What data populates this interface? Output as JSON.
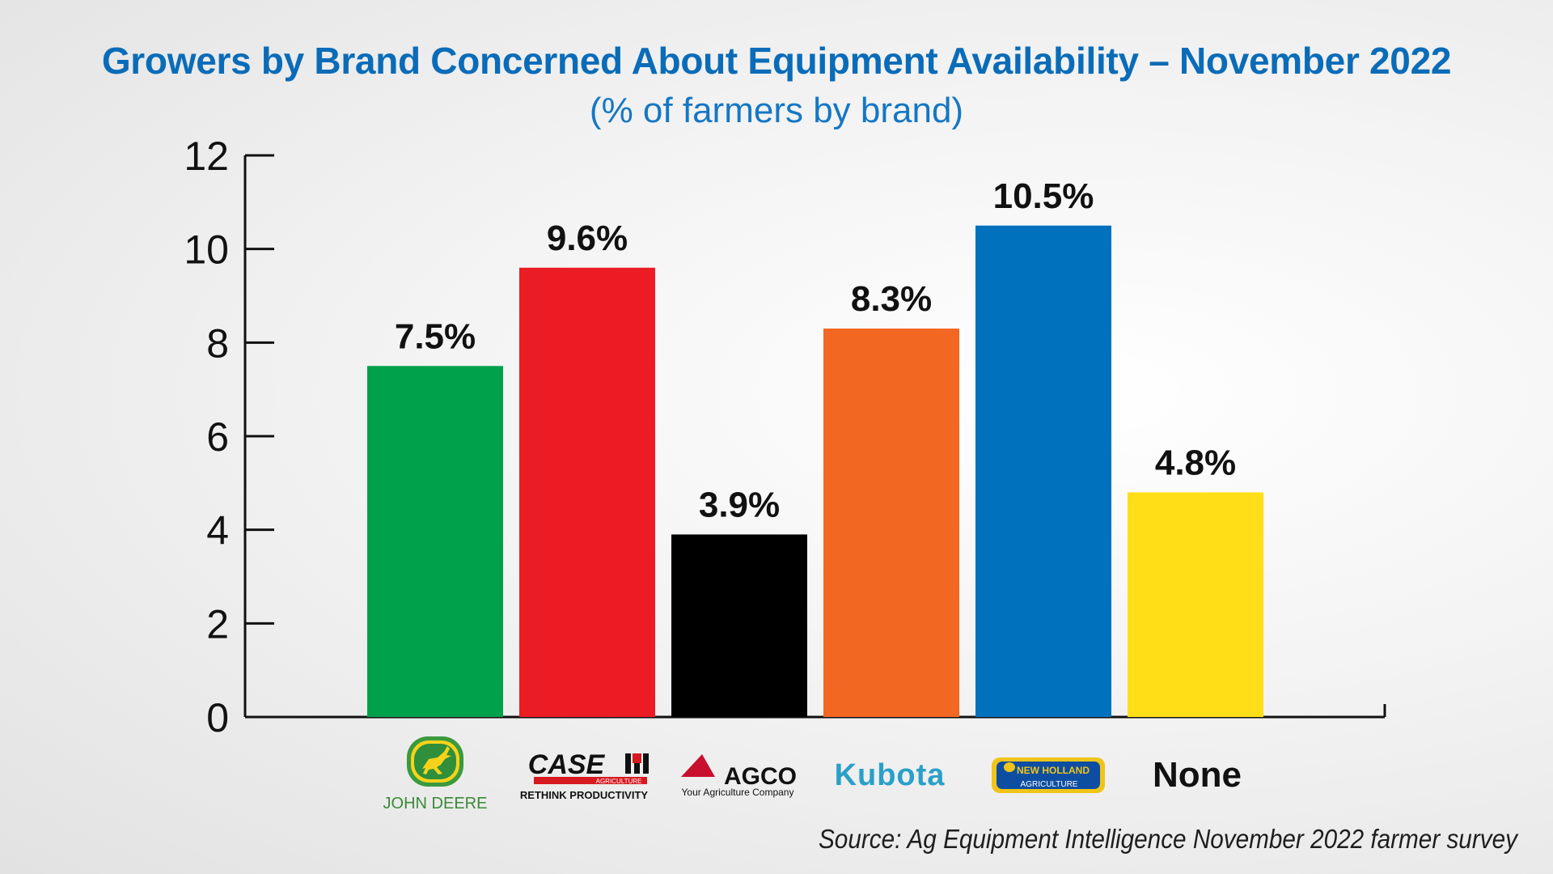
{
  "chart_data": {
    "type": "bar",
    "title": "Growers by Brand Concerned About Equipment Availability – November 2022",
    "subtitle": "(% of farmers by brand)",
    "categories": [
      "John Deere",
      "Case IH",
      "AGCO",
      "Kubota",
      "New Holland",
      "None"
    ],
    "values": [
      7.5,
      9.6,
      3.9,
      8.3,
      10.5,
      4.8
    ],
    "data_labels": [
      "7.5%",
      "9.6%",
      "3.9%",
      "8.3%",
      "10.5%",
      "4.8%"
    ],
    "colors": [
      "#00a14b",
      "#ec1c24",
      "#000000",
      "#f26722",
      "#0071bc",
      "#ffde17"
    ],
    "ylim": [
      0,
      12
    ],
    "yticks": [
      "0",
      "2",
      "4",
      "6",
      "8",
      "10",
      "12"
    ],
    "xlabel": "",
    "ylabel": "",
    "grid": false,
    "legend": "none"
  },
  "logos": {
    "john_deere": {
      "text": "JOHN DEERE",
      "icon": "deer-icon"
    },
    "case_ih": {
      "name": "CASE",
      "sub": "AGRICULTURE",
      "tagline": "RETHINK PRODUCTIVITY",
      "icon": "ih-icon"
    },
    "agco": {
      "name": "AGCO",
      "tagline": "Your Agriculture Company",
      "icon": "agco-triangle-icon"
    },
    "kubota": {
      "name": "Kubota"
    },
    "new_holland": {
      "name": "NEW HOLLAND",
      "sub": "AGRICULTURE",
      "icon": "leaf-icon"
    }
  },
  "none_label": "None",
  "source": "Source: Ag Equipment Intelligence November 2022 farmer survey"
}
